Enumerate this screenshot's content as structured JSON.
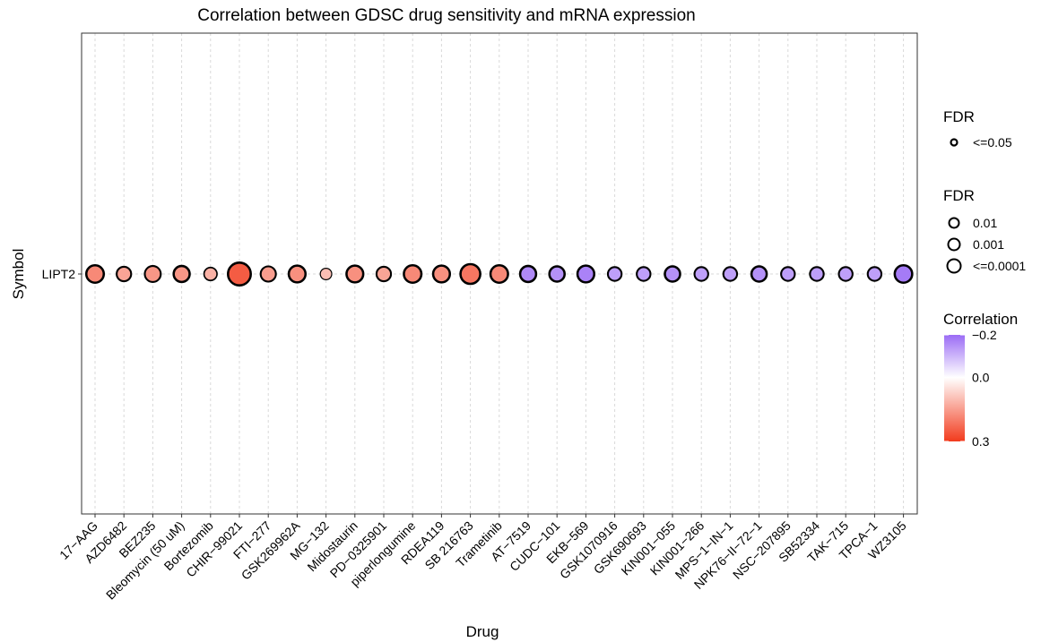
{
  "chart_data": {
    "type": "bubble",
    "title": "Correlation between GDSC drug sensitivity and mRNA expression",
    "xlabel": "Drug",
    "ylabel": "Symbol",
    "y_categories": [
      "LIPT2"
    ],
    "categories": [
      "17−AAG",
      "AZD6482",
      "BEZ235",
      "Bleomycin (50 uM)",
      "Bortezomib",
      "CHIR−99021",
      "FTI−277",
      "GSK269962A",
      "MG−132",
      "Midostaurin",
      "PD−0325901",
      "piperlongumine",
      "RDEA119",
      "SB 216763",
      "Trametinib",
      "AT−7519",
      "CUDC−101",
      "EKB−569",
      "GSK1070916",
      "GSK690693",
      "KIN001−055",
      "KIN001−266",
      "MPS−1−IN−1",
      "NPK76−II−72−1",
      "NSC−207895",
      "SB52334",
      "TAK−715",
      "TPCA−1",
      "WZ3105"
    ],
    "correlation": [
      0.18,
      0.14,
      0.16,
      0.16,
      0.12,
      0.25,
      0.15,
      0.17,
      0.1,
      0.17,
      0.14,
      0.18,
      0.17,
      0.21,
      0.18,
      -0.16,
      -0.15,
      -0.17,
      -0.13,
      -0.13,
      -0.15,
      -0.13,
      -0.13,
      -0.15,
      -0.13,
      -0.13,
      -0.13,
      -0.13,
      -0.18
    ],
    "fdr_class": [
      3,
      2,
      2,
      3,
      1,
      3,
      2,
      3,
      0,
      3,
      2,
      3,
      3,
      3,
      3,
      3,
      3,
      3,
      2,
      2,
      3,
      2,
      2,
      3,
      2,
      2,
      2,
      2,
      3
    ],
    "size_by_abs_correlation": [
      0.18,
      0.14,
      0.16,
      0.16,
      0.12,
      0.25,
      0.15,
      0.17,
      0.1,
      0.17,
      0.14,
      0.18,
      0.17,
      0.21,
      0.18,
      0.16,
      0.15,
      0.17,
      0.13,
      0.13,
      0.15,
      0.13,
      0.13,
      0.15,
      0.13,
      0.13,
      0.13,
      0.13,
      0.18
    ],
    "legend_fdr_outline": {
      "title": "FDR",
      "labels": [
        "<=0.05"
      ]
    },
    "legend_fdr": {
      "title": "FDR",
      "labels": [
        "0.01",
        "0.001",
        "<=0.0001"
      ]
    },
    "legend_correlation": {
      "title": "Correlation",
      "labels": [
        "−0.2",
        "0.0",
        "0.3"
      ],
      "values": [
        -0.2,
        0.0,
        0.3
      ]
    },
    "colors": {
      "negative": "#9b6cf5",
      "zero": "#ffffff",
      "positive": "#f23b1d",
      "outline": "#000000",
      "grid": "#d9d9d9",
      "panel_border": "#333333"
    },
    "legend_placement": "right",
    "grid": true
  }
}
